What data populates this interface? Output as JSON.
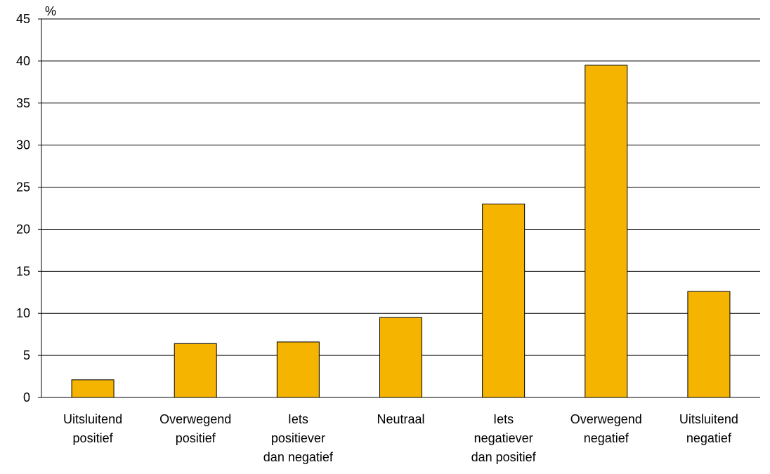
{
  "chart_data": {
    "type": "bar",
    "ylabel": "%",
    "ylim": [
      0,
      45
    ],
    "yticks": [
      0,
      5,
      10,
      15,
      20,
      25,
      30,
      35,
      40,
      45
    ],
    "grid": true,
    "categories": [
      [
        "Uitsluitend",
        "positief"
      ],
      [
        "Overwegend",
        "positief"
      ],
      [
        "Iets",
        "positiever",
        "dan negatief"
      ],
      [
        "Neutraal"
      ],
      [
        "Iets",
        "negatiever",
        "dan positief"
      ],
      [
        "Overwegend",
        "negatief"
      ],
      [
        "Uitsluitend",
        "negatief"
      ]
    ],
    "values": [
      2.1,
      6.4,
      6.6,
      9.5,
      23.0,
      39.5,
      12.6
    ],
    "colors": {
      "bar": "#F5B400",
      "bar_stroke": "#000000",
      "grid": "#000000"
    }
  }
}
